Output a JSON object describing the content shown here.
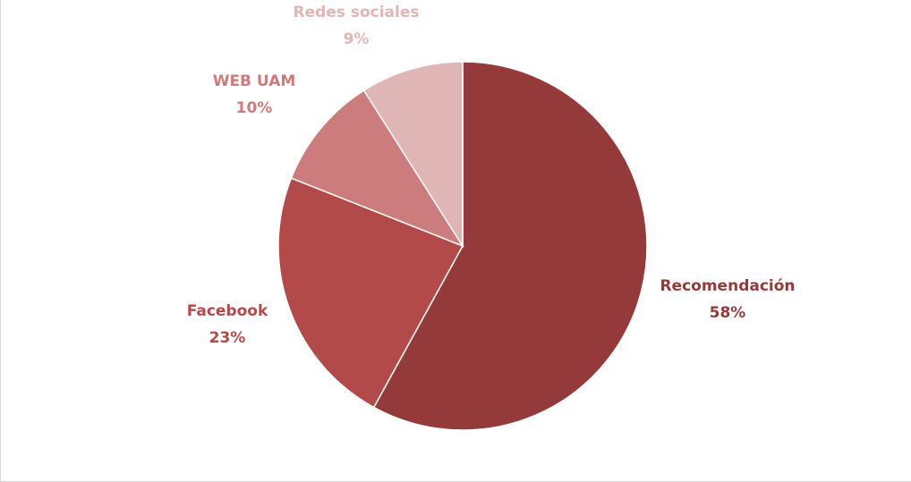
{
  "chart_data": {
    "type": "pie",
    "title": "",
    "start_angle_deg": 0,
    "direction": "clockwise",
    "legend": "none",
    "slices": [
      {
        "name": "Recomendación",
        "value": 58,
        "label_value": "58%",
        "color": "#953a3a"
      },
      {
        "name": "Facebook",
        "value": 23,
        "label_value": "23%",
        "color": "#b24a4a"
      },
      {
        "name": "WEB UAM",
        "value": 10,
        "label_value": "10%",
        "color": "#cc7c7c"
      },
      {
        "name": "Redes sociales",
        "value": 9,
        "label_value": "9%",
        "color": "#e0b5b5"
      }
    ]
  }
}
